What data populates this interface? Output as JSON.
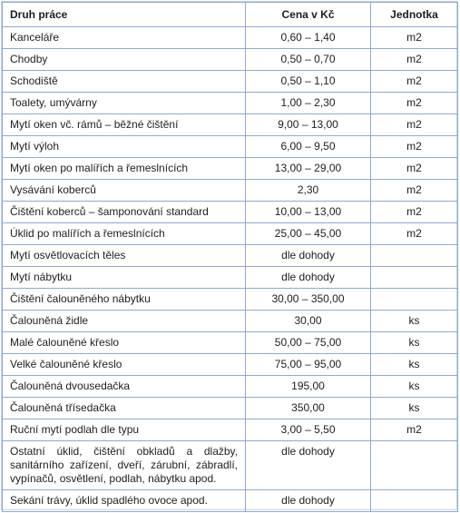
{
  "table": {
    "headers": {
      "work": "Druh práce",
      "price": "Cena v Kč",
      "unit": "Jednotka"
    },
    "rows": [
      {
        "work": "Kanceláře",
        "price": "0,60 – 1,40",
        "unit": "m2"
      },
      {
        "work": "Chodby",
        "price": "0,50 – 0,70",
        "unit": "m2"
      },
      {
        "work": "Schodiště",
        "price": "0,50 – 1,10",
        "unit": "m2"
      },
      {
        "work": "Toalety, umývárny",
        "price": "1,00 – 2,30",
        "unit": "m2"
      },
      {
        "work": "Mytí oken vč. rámů – běžné čištění",
        "price": "9,00 – 13,00",
        "unit": "m2"
      },
      {
        "work": "Mytí výloh",
        "price": "6,00 – 9,50",
        "unit": "m2"
      },
      {
        "work": "Mytí oken po malířích a řemeslnících",
        "price": "13,00 – 29,00",
        "unit": "m2"
      },
      {
        "work": "Vysávání koberců",
        "price": "2,30",
        "unit": "m2"
      },
      {
        "work": "Čištění koberců – šamponování standard",
        "price": "10,00 – 13,00",
        "unit": "m2"
      },
      {
        "work": "Úklid po malířích a řemeslnících",
        "price": "25,00 – 45,00",
        "unit": "m2"
      },
      {
        "work": "Mytí osvětlovacích těles",
        "price": "dle dohody",
        "unit": ""
      },
      {
        "work": "Mytí nábytku",
        "price": "dle dohody",
        "unit": ""
      },
      {
        "work": "Čištění čalouněného nábytku",
        "price": "30,00 – 350,00",
        "unit": ""
      },
      {
        "work": "Čalouněná židle",
        "price": "30,00",
        "unit": "ks"
      },
      {
        "work": "Malé čalouněné křeslo",
        "price": "50,00 – 75,00",
        "unit": "ks"
      },
      {
        "work": "Velké čalouněné křeslo",
        "price": "75,00 – 95,00",
        "unit": "ks"
      },
      {
        "work": "Čalouněná dvousedačka",
        "price": "195,00",
        "unit": "ks"
      },
      {
        "work": "Čalouněná třísedačka",
        "price": "350,00",
        "unit": "ks"
      },
      {
        "work": "Ruční mytí podlah dle typu",
        "price": "3,00 – 5,50",
        "unit": "m2"
      },
      {
        "work": "Ostatní úklid, čištění obkladů a dlažby, sanitárního zařízení, dveří, zárubní, zábradlí, vypínačů, osvětlení, podlah, nábytku apod.",
        "price": "dle dohody",
        "unit": "",
        "multi": true
      },
      {
        "work": "Sekání trávy, úklid spadlého ovoce apod.",
        "price": "dle dohody",
        "unit": ""
      }
    ]
  }
}
